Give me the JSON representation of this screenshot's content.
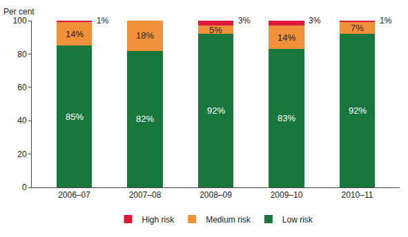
{
  "chart_data": {
    "type": "bar",
    "stacked": true,
    "data_labels": true,
    "ylabel": "Per cent",
    "categories": [
      "2006–07",
      "2007–08",
      "2008–09",
      "2009–10",
      "2010–11"
    ],
    "series": [
      {
        "name": "Low risk",
        "color": "#17773d",
        "values": [
          85,
          82,
          92,
          83,
          92
        ],
        "value_labels": [
          "85%",
          "82%",
          "92%",
          "83%",
          "92%"
        ]
      },
      {
        "name": "Medium risk",
        "color": "#f0913a",
        "values": [
          14,
          18,
          5,
          14,
          7
        ],
        "value_labels": [
          "14%",
          "18%",
          "5%",
          "14%",
          "7%"
        ]
      },
      {
        "name": "High risk",
        "color": "#e0193a",
        "values": [
          1,
          0,
          3,
          3,
          1
        ],
        "value_labels": [
          "1%",
          null,
          "3%",
          "3%",
          "1%"
        ]
      }
    ],
    "ylim": [
      0,
      100
    ],
    "yticks": [
      0,
      20,
      40,
      60,
      80,
      100
    ],
    "grid": false,
    "legend": "bottom"
  }
}
